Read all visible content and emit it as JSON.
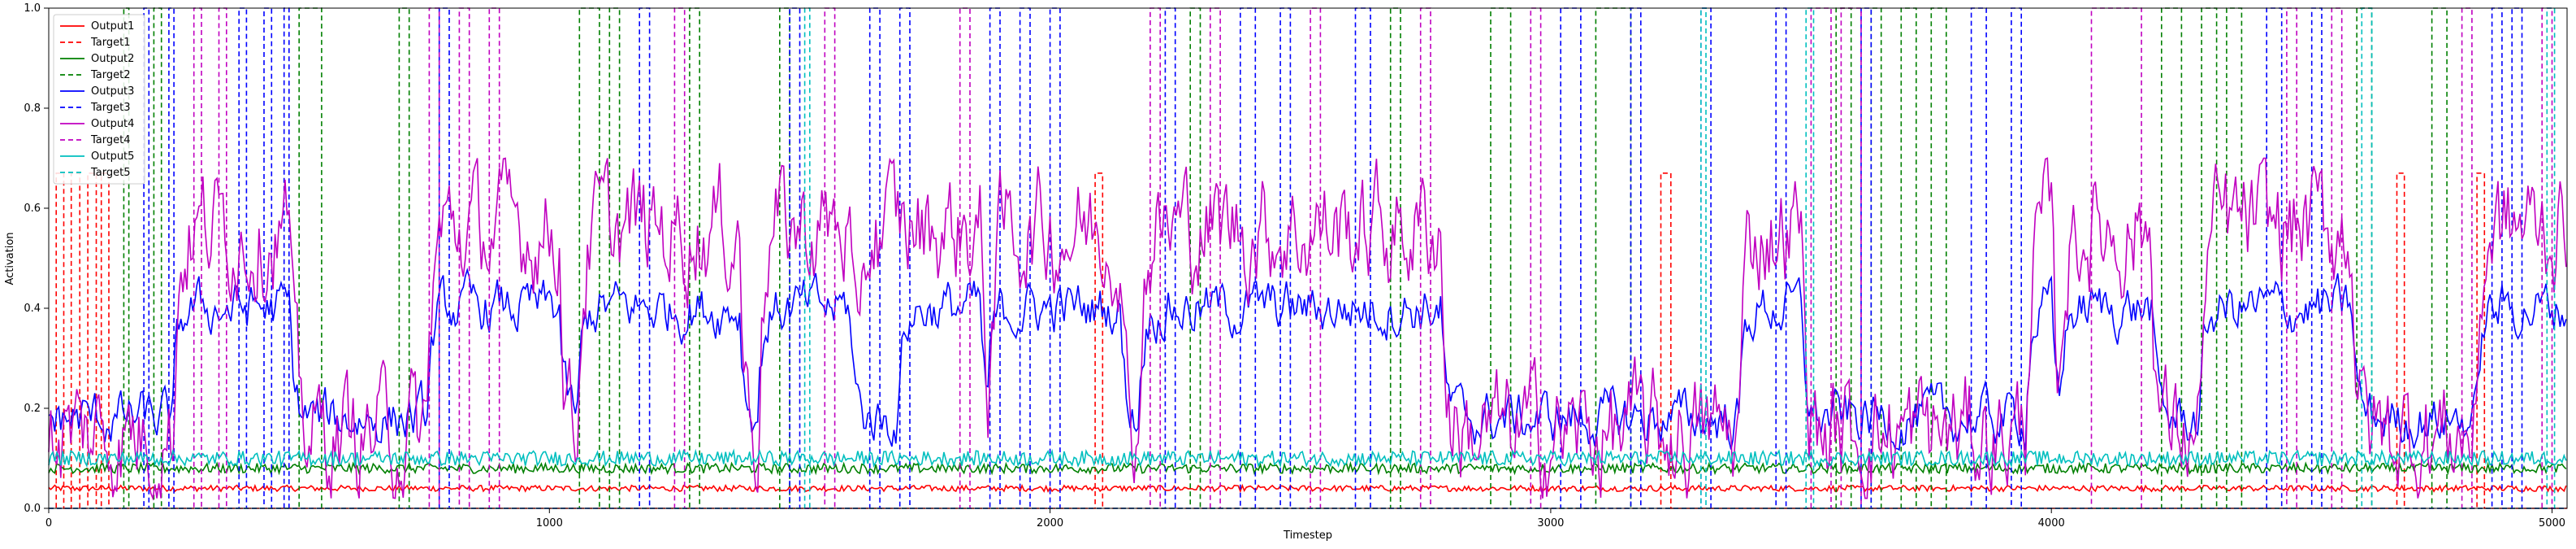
{
  "chart_data": {
    "type": "line",
    "title": "",
    "xlabel": "Timestep",
    "ylabel": "Activation",
    "xlim": [
      0,
      5030
    ],
    "ylim": [
      0.0,
      1.0
    ],
    "x_ticks": [
      0,
      1000,
      2000,
      3000,
      4000,
      5000
    ],
    "y_ticks": [
      0.0,
      0.2,
      0.4,
      0.6,
      0.8,
      1.0
    ],
    "x_tick_labels": [
      "0",
      "1000",
      "2000",
      "3000",
      "4000",
      "5000"
    ],
    "y_tick_labels": [
      "0.0",
      "0.2",
      "0.4",
      "0.6",
      "0.8",
      "1.0"
    ],
    "grid": false,
    "legend_position": "top-left",
    "series": [
      {
        "name": "Output1",
        "color": "#ff0000",
        "style": "solid",
        "kind": "flat",
        "base": 0.04,
        "noise": 0.006
      },
      {
        "name": "Target1",
        "color": "#ff0000",
        "style": "dashed",
        "kind": "pulses",
        "level": 0.67,
        "pulses": [
          [
            15,
            30
          ],
          [
            45,
            62
          ],
          [
            78,
            95
          ],
          [
            105,
            120
          ],
          [
            2090,
            2105
          ],
          [
            3220,
            3240
          ],
          [
            4690,
            4705
          ],
          [
            4850,
            4865
          ]
        ]
      },
      {
        "name": "Output2",
        "color": "#008000",
        "style": "solid",
        "kind": "flat",
        "base": 0.08,
        "noise": 0.01
      },
      {
        "name": "Target2",
        "color": "#008000",
        "style": "dashed",
        "kind": "pulses",
        "level": 1.0,
        "pulses": [
          [
            150,
            160
          ],
          [
            210,
            225
          ],
          [
            500,
            545
          ],
          [
            700,
            720
          ],
          [
            1060,
            1100
          ],
          [
            1120,
            1140
          ],
          [
            1280,
            1300
          ],
          [
            1460,
            1480
          ],
          [
            2280,
            2300
          ],
          [
            2680,
            2700
          ],
          [
            2880,
            2920
          ],
          [
            3090,
            3160
          ],
          [
            3570,
            3600
          ],
          [
            3640,
            3660
          ],
          [
            3700,
            3730
          ],
          [
            3760,
            3790
          ],
          [
            4220,
            4260
          ],
          [
            4300,
            4330
          ],
          [
            4350,
            4380
          ],
          [
            4610,
            4640
          ],
          [
            4760,
            4790
          ]
        ]
      },
      {
        "name": "Output3",
        "color": "#0000ff",
        "style": "solid",
        "kind": "wave",
        "low": 0.18,
        "high": 0.4,
        "noise": 0.04,
        "high_segments": [
          [
            250,
            480
          ],
          [
            760,
            1020
          ],
          [
            1060,
            1380
          ],
          [
            1420,
            1600
          ],
          [
            1700,
            1860
          ],
          [
            1880,
            2140
          ],
          [
            2180,
            2780
          ],
          [
            3380,
            3500
          ],
          [
            3950,
            4000
          ],
          [
            4020,
            4200
          ],
          [
            4300,
            4600
          ],
          [
            4850,
            5030
          ]
        ]
      },
      {
        "name": "Target3",
        "color": "#0000ff",
        "style": "dashed",
        "kind": "pulses",
        "level": 1.0,
        "pulses": [
          [
            190,
            200
          ],
          [
            240,
            250
          ],
          [
            380,
            395
          ],
          [
            430,
            445
          ],
          [
            470,
            480
          ],
          [
            780,
            800
          ],
          [
            1180,
            1200
          ],
          [
            1480,
            1500
          ],
          [
            1640,
            1660
          ],
          [
            1700,
            1720
          ],
          [
            1880,
            1900
          ],
          [
            1940,
            1960
          ],
          [
            2000,
            2020
          ],
          [
            2230,
            2250
          ],
          [
            2380,
            2410
          ],
          [
            2460,
            2480
          ],
          [
            2610,
            2640
          ],
          [
            3020,
            3060
          ],
          [
            3160,
            3180
          ],
          [
            3300,
            3320
          ],
          [
            3450,
            3470
          ],
          [
            3620,
            3640
          ],
          [
            3840,
            3870
          ],
          [
            3920,
            3940
          ],
          [
            4430,
            4460
          ],
          [
            4520,
            4540
          ],
          [
            4880,
            4900
          ],
          [
            4920,
            4940
          ]
        ]
      },
      {
        "name": "Output4",
        "color": "#c000c0",
        "style": "solid",
        "kind": "wave",
        "low": 0.15,
        "high": 0.56,
        "noise": 0.09,
        "high_segments": [
          [
            250,
            480
          ],
          [
            760,
            1020
          ],
          [
            1060,
            1380
          ],
          [
            1420,
            1600
          ],
          [
            1620,
            1860
          ],
          [
            1880,
            2140
          ],
          [
            2180,
            2780
          ],
          [
            3380,
            3500
          ],
          [
            3950,
            4000
          ],
          [
            4020,
            4200
          ],
          [
            4300,
            4600
          ],
          [
            4850,
            5030
          ]
        ]
      },
      {
        "name": "Target4",
        "color": "#c000c0",
        "style": "dashed",
        "kind": "pulses",
        "level": 1.0,
        "pulses": [
          [
            290,
            305
          ],
          [
            340,
            355
          ],
          [
            760,
            780
          ],
          [
            820,
            840
          ],
          [
            880,
            900
          ],
          [
            1250,
            1270
          ],
          [
            1550,
            1570
          ],
          [
            1820,
            1840
          ],
          [
            2200,
            2220
          ],
          [
            2320,
            2340
          ],
          [
            2520,
            2540
          ],
          [
            2740,
            2760
          ],
          [
            2960,
            2980
          ],
          [
            3520,
            3560
          ],
          [
            3580,
            3620
          ],
          [
            4080,
            4180
          ],
          [
            4470,
            4490
          ],
          [
            4560,
            4580
          ],
          [
            4820,
            4840
          ],
          [
            4980,
            5000
          ]
        ]
      },
      {
        "name": "Output5",
        "color": "#00bfbf",
        "style": "solid",
        "kind": "flat",
        "base": 0.1,
        "noise": 0.015
      },
      {
        "name": "Target5",
        "color": "#00bfbf",
        "style": "dashed",
        "kind": "pulses",
        "level": 1.0,
        "pulses": [
          [
            1510,
            1520
          ],
          [
            3300,
            3310
          ],
          [
            3510,
            3525
          ],
          [
            4620,
            4640
          ],
          [
            4990,
            5005
          ]
        ]
      }
    ]
  }
}
